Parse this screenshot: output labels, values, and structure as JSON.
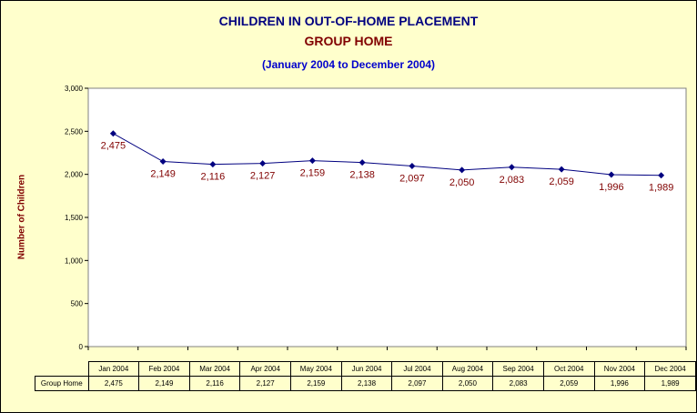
{
  "chart_data": {
    "type": "line",
    "title": "CHILDREN IN OUT-OF-HOME PLACEMENT",
    "subtitle": "GROUP HOME",
    "period": "(January 2004 to December 2004)",
    "xlabel": "",
    "ylabel": "Number of Children",
    "ylim": [
      0,
      3000
    ],
    "yticks": [
      "0",
      "500",
      "1,000",
      "1,500",
      "2,000",
      "2,500",
      "3,000"
    ],
    "categories": [
      "Jan 2004",
      "Feb 2004",
      "Mar 2004",
      "Apr 2004",
      "May 2004",
      "Jun 2004",
      "Jul 2004",
      "Aug 2004",
      "Sep 2004",
      "Oct 2004",
      "Nov 2004",
      "Dec 2004"
    ],
    "series": [
      {
        "name": "Group Home",
        "values": [
          2475,
          2149,
          2116,
          2127,
          2159,
          2138,
          2097,
          2050,
          2083,
          2059,
          1996,
          1989
        ],
        "labels": [
          "2,475",
          "2,149",
          "2,116",
          "2,127",
          "2,159",
          "2,138",
          "2,097",
          "2,050",
          "2,083",
          "2,059",
          "1,996",
          "1,989"
        ]
      }
    ],
    "grid": false,
    "legend": "data-table",
    "colors": {
      "line": "#000080",
      "marker": "#000080",
      "data_label": "#800000",
      "title": "#000080",
      "subtitle": "#800000",
      "period": "#0000cc",
      "background": "#ffffcc"
    }
  }
}
